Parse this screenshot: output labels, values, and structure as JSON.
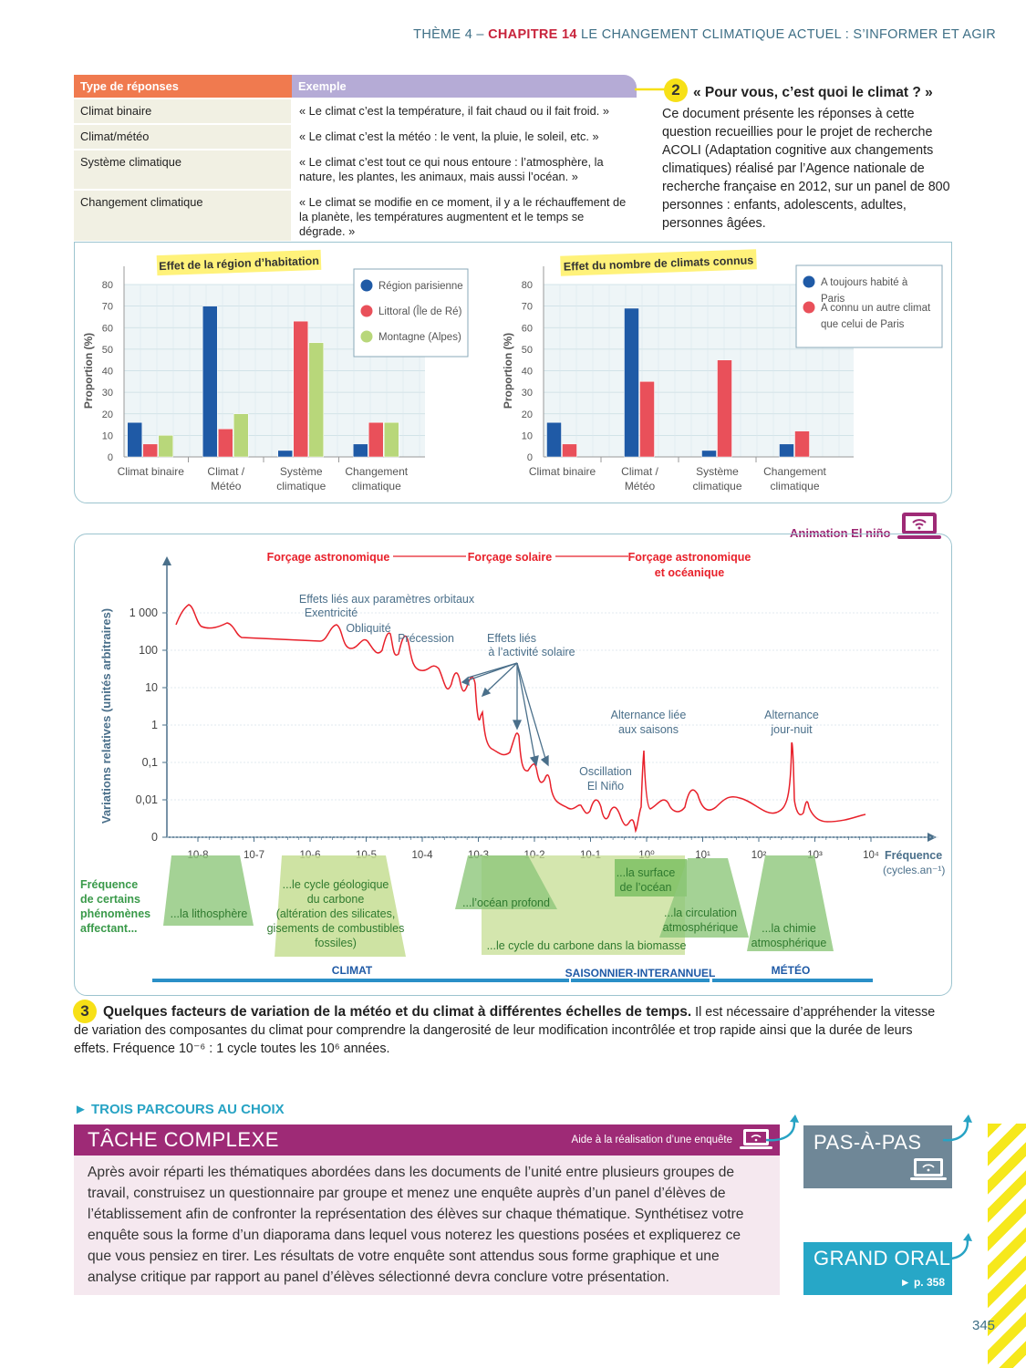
{
  "header": {
    "theme": "THÈME 4 – ",
    "chapter": "CHAPITRE 14",
    "title": " LE CHANGEMENT CLIMATIQUE ACTUEL : S’INFORMER ET AGIR"
  },
  "table": {
    "headers": [
      "Type de réponses",
      "Exemple"
    ],
    "rows": [
      {
        "type": "Climat binaire",
        "example": "« Le climat c’est la température, il fait chaud ou il fait froid. »"
      },
      {
        "type": "Climat/météo",
        "example": "« Le climat c’est la météo : le vent, la pluie, le soleil, etc. »"
      },
      {
        "type": "Système climatique",
        "example": "« Le climat c’est tout ce qui nous entoure : l’atmosphère, la nature, les plantes, les animaux, mais aussi l’océan. »"
      },
      {
        "type": "Changement climatique",
        "example": "« Le climat se modifie en ce moment, il y a le réchauffement de la planète, les températures augmentent et le temps se dégrade. »"
      }
    ]
  },
  "doc2": {
    "number": "2",
    "title": "« Pour vous, c’est quoi le climat ? »",
    "text": "Ce document présente les réponses à cette question recueillies pour le projet de recherche ACOLI (Adaptation cognitive aux changements climatiques) réalisé par l’Agence nationale de recherche française en 2012, sur un panel de 800 personnes : enfants, adolescents, adultes, personnes âgées."
  },
  "chart_data": [
    {
      "type": "bar",
      "title": "Effet de la région d’habitation",
      "ylabel": "Proportion (%)",
      "ylim": [
        0,
        80
      ],
      "yticks": [
        0,
        10,
        20,
        30,
        40,
        50,
        60,
        70,
        80
      ],
      "categories": [
        [
          "Climat binaire"
        ],
        [
          "Climat /",
          "Météo"
        ],
        [
          "Système",
          "climatique"
        ],
        [
          "Changement",
          "climatique"
        ]
      ],
      "series": [
        {
          "name": "Région parisienne",
          "color": "#1f5aa6",
          "values": [
            16,
            70,
            3,
            6
          ]
        },
        {
          "name": "Littoral (Île de Ré)",
          "color": "#e9505a",
          "values": [
            6,
            13,
            63,
            16
          ]
        },
        {
          "name": "Montagne (Alpes)",
          "color": "#b8d77a",
          "values": [
            10,
            20,
            53,
            16
          ]
        }
      ],
      "grid": true,
      "legend": "top-right"
    },
    {
      "type": "bar",
      "title": "Effet du nombre de climats connus",
      "ylabel": "Proportion (%)",
      "ylim": [
        0,
        80
      ],
      "yticks": [
        0,
        10,
        20,
        30,
        40,
        50,
        60,
        70,
        80
      ],
      "categories": [
        [
          "Climat binaire"
        ],
        [
          "Climat /",
          "Météo"
        ],
        [
          "Système",
          "climatique"
        ],
        [
          "Changement",
          "climatique"
        ]
      ],
      "series": [
        {
          "name": "A toujours habité à Paris",
          "color": "#1f5aa6",
          "values": [
            16,
            69,
            3,
            6
          ]
        },
        {
          "name": "A connu un autre climat que celui de Paris",
          "color": "#e9505a",
          "values": [
            6,
            35,
            45,
            12
          ]
        }
      ],
      "grid": true,
      "legend": "top-right"
    },
    {
      "type": "line",
      "ylabel": "Variations relatives (unités arbitraires)",
      "xlabel": "Fréquence (cycles.an⁻¹)",
      "yscale": "log",
      "yticks": [
        "0",
        "0,01",
        "0,1",
        "1",
        "10",
        "100",
        "1 000"
      ],
      "xscale": "log",
      "xticks": [
        "10-8",
        "10-7",
        "10-6",
        "10-5",
        "10-4",
        "10-3",
        "10-2",
        "10-1",
        "10⁰",
        "10¹",
        "10²",
        "10³",
        "10⁴"
      ],
      "series_color": "#e8202a"
    }
  ],
  "doc3": {
    "animation_label": "Animation El niño",
    "forcings": [
      "Forçage astronomique",
      "Forçage solaire",
      "Forçage astronomique et océanique"
    ],
    "annotations": {
      "orbital": "Effets liés aux paramètres orbitaux",
      "excentricite": "Exentricité",
      "obliquite": "Obliquité",
      "precession": "Précession",
      "solaire1": "Effets liés",
      "solaire2": "à l’activité solaire",
      "saisons1": "Alternance liée",
      "saisons2": "aux saisons",
      "jour1": "Alternance",
      "jour2": "jour-nuit",
      "nino1": "Oscillation",
      "nino2": "El Niño",
      "freq1": "Fréquence",
      "freq2": "(cycles.an⁻¹)"
    },
    "phenomena_intro": [
      "Fréquence",
      "de certains",
      "phénomènes",
      "affectant..."
    ],
    "phenomena": {
      "lithosphere": "...la lithosphère",
      "carbone": [
        "...le cycle géologique",
        "du carbone",
        "(altération des silicates,",
        "gisements de combustibles",
        "fossiles)"
      ],
      "ocean": "...l’océan profond",
      "biomasse": "...le cycle du carbone dans la biomasse",
      "surface": [
        "...la surface",
        "de l’océan"
      ],
      "circulation": [
        "...la circulation",
        "atmosphérique"
      ],
      "chimie": [
        "...la chimie",
        "atmosphérique"
      ]
    },
    "scales": [
      "CLIMAT",
      "SAISONNIER-INTERANNUEL",
      "MÉTÉO"
    ],
    "number": "3",
    "caption_title": "Quelques facteurs de variation de la météo et du climat à différentes échelles de temps.",
    "caption_text": " Il est nécessaire d’appréhender la vitesse de variation des composantes du climat pour comprendre la dangerosité de leur modification incontrôlée et trop rapide ainsi que la durée de leurs effets. Fréquence 10⁻⁶ : 1 cycle toutes les 10⁶ années."
  },
  "bottom": {
    "trois": "► TROIS PARCOURS AU CHOIX",
    "tache_title": "TÂCHE COMPLEXE",
    "tache_aide": "Aide à la réalisation d’une enquête",
    "tache_text": "Après avoir réparti les thématiques abordées dans les documents de l’unité entre plusieurs groupes de travail, construisez un questionnaire par groupe et menez une enquête auprès d’un panel d’élèves de l’établissement afin de confronter la représentation des élèves sur chaque thématique. Synthétisez votre enquête sous la forme d’un diaporama dans lequel vous noterez les questions posées et expliquerez ce que vous pensiez en tirer. Les résultats de votre enquête sont attendus sous forme graphique et une analyse critique par rapport au panel d’élèves sélectionné devra conclure votre présentation.",
    "pas": "PAS-À-PAS",
    "oral": "GRAND ORAL",
    "oral_page": "► p. 358",
    "page_number": "345"
  }
}
